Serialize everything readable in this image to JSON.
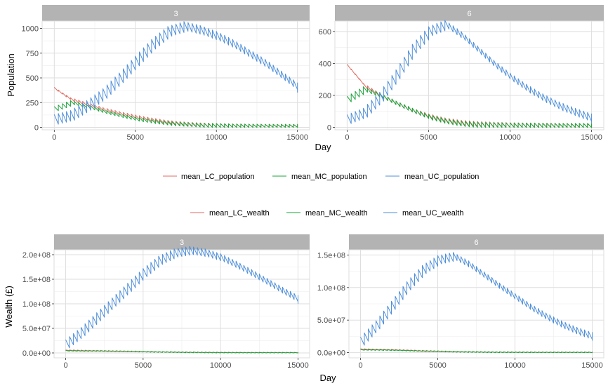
{
  "colors": {
    "LC": "#e06a62",
    "MC": "#1aa33a",
    "UC": "#4f8fda",
    "strip": "#b3b3b3",
    "grid": "#dedede"
  },
  "legends": {
    "population": [
      "mean_LC_population",
      "mean_MC_population",
      "mean_UC_population"
    ],
    "wealth": [
      "mean_LC_wealth",
      "mean_MC_wealth",
      "mean_UC_wealth"
    ]
  },
  "chart_data": [
    {
      "type": "line",
      "facet": "3",
      "xlabel": "Day",
      "ylabel": "Population",
      "xlim": [
        0,
        15000
      ],
      "ylim": [
        -25,
        1075
      ],
      "x_ticks": [
        0,
        5000,
        10000,
        15000
      ],
      "x_tick_labels": [
        "0",
        "5000",
        "10000",
        "15000"
      ],
      "y_ticks": [
        0,
        250,
        500,
        750,
        1000
      ],
      "y_tick_labels": [
        "0",
        "250",
        "500",
        "750",
        "1000"
      ],
      "grid": true,
      "legend_position": "bottom",
      "series": [
        {
          "name": "mean_LC_population",
          "x": [
            0,
            500,
            1000,
            2000,
            3000,
            4000,
            5000,
            6000,
            7000,
            8000,
            9000,
            10000,
            11000,
            12000,
            13000,
            14000,
            15000
          ],
          "values": [
            375,
            320,
            270,
            220,
            170,
            130,
            95,
            65,
            40,
            25,
            15,
            10,
            5,
            3,
            2,
            1,
            0
          ],
          "sawtooth": 30
        },
        {
          "name": "mean_MC_population",
          "x": [
            0,
            500,
            1000,
            2000,
            3000,
            4000,
            5000,
            6000,
            7000,
            8000,
            9000,
            10000,
            11000,
            12000,
            13000,
            14000,
            15000
          ],
          "values": [
            180,
            210,
            240,
            200,
            150,
            110,
            75,
            50,
            30,
            20,
            12,
            8,
            4,
            2,
            1,
            0,
            0
          ],
          "sawtooth": 30
        },
        {
          "name": "mean_UC_population",
          "x": [
            0,
            1000,
            2000,
            3000,
            4000,
            5000,
            6000,
            7000,
            8000,
            9000,
            10000,
            11000,
            12000,
            13000,
            14000,
            15000
          ],
          "values": [
            60,
            100,
            200,
            320,
            480,
            650,
            820,
            950,
            1000,
            960,
            900,
            820,
            720,
            620,
            500,
            380
          ],
          "sawtooth": 70
        }
      ]
    },
    {
      "type": "line",
      "facet": "6",
      "xlabel": "Day",
      "ylabel": "",
      "xlim": [
        0,
        15000
      ],
      "ylim": [
        -15,
        665
      ],
      "x_ticks": [
        0,
        5000,
        10000,
        15000
      ],
      "x_tick_labels": [
        "0",
        "5000",
        "10000",
        "15000"
      ],
      "y_ticks": [
        0,
        200,
        400,
        600
      ],
      "y_tick_labels": [
        "0",
        "200",
        "400",
        "600"
      ],
      "grid": true,
      "legend_position": "bottom",
      "series": [
        {
          "name": "mean_LC_population",
          "x": [
            0,
            500,
            1000,
            2000,
            3000,
            4000,
            5000,
            6000,
            7000,
            8000,
            9000,
            10000,
            11000,
            12000,
            13000,
            14000,
            15000
          ],
          "values": [
            370,
            310,
            250,
            190,
            140,
            95,
            60,
            35,
            20,
            12,
            8,
            5,
            3,
            2,
            1,
            0,
            0
          ],
          "sawtooth": 25
        },
        {
          "name": "mean_MC_population",
          "x": [
            0,
            500,
            1000,
            2000,
            3000,
            4000,
            5000,
            6000,
            7000,
            8000,
            9000,
            10000,
            11000,
            12000,
            13000,
            14000,
            15000
          ],
          "values": [
            170,
            200,
            230,
            190,
            140,
            95,
            55,
            30,
            15,
            8,
            5,
            3,
            2,
            1,
            0,
            0,
            0
          ],
          "sawtooth": 25
        },
        {
          "name": "mean_UC_population",
          "x": [
            0,
            1000,
            2000,
            3000,
            4000,
            5000,
            6000,
            7000,
            8000,
            9000,
            10000,
            11000,
            12000,
            13000,
            14000,
            15000
          ],
          "values": [
            40,
            80,
            180,
            320,
            480,
            590,
            630,
            560,
            470,
            380,
            300,
            230,
            170,
            120,
            80,
            45
          ],
          "sawtooth": 40
        }
      ]
    },
    {
      "type": "line",
      "facet": "3",
      "xlabel": "Day",
      "ylabel": "Wealth (£)",
      "xlim": [
        0,
        15000
      ],
      "ylim": [
        -10000000,
        210000000
      ],
      "x_ticks": [
        0,
        5000,
        10000,
        15000
      ],
      "x_tick_labels": [
        "0",
        "5000",
        "10000",
        "15000"
      ],
      "y_ticks": [
        0,
        50000000,
        100000000,
        150000000,
        200000000
      ],
      "y_tick_labels": [
        "0.0e+00",
        "5.0e+07",
        "1.0e+08",
        "1.5e+08",
        "2.0e+08"
      ],
      "grid": true,
      "legend_position": "top",
      "series": [
        {
          "name": "mean_LC_wealth",
          "x": [
            0,
            2000,
            4000,
            6000,
            8000,
            10000,
            12000,
            15000
          ],
          "values": [
            5000000,
            4000000,
            3000000,
            1500000,
            800000,
            300000,
            100000,
            0
          ],
          "sawtooth": 1200000
        },
        {
          "name": "mean_MC_wealth",
          "x": [
            0,
            2000,
            4000,
            6000,
            8000,
            10000,
            12000,
            15000
          ],
          "values": [
            4000000,
            3500000,
            2500000,
            1500000,
            800000,
            300000,
            100000,
            0
          ],
          "sawtooth": 1000000
        },
        {
          "name": "mean_UC_wealth",
          "x": [
            0,
            1000,
            2000,
            3000,
            4000,
            5000,
            6000,
            7000,
            8000,
            9000,
            10000,
            11000,
            12000,
            13000,
            14000,
            15000
          ],
          "values": [
            15000000,
            40000000,
            70000000,
            100000000,
            130000000,
            160000000,
            185000000,
            200000000,
            205000000,
            200000000,
            190000000,
            175000000,
            158000000,
            140000000,
            122000000,
            105000000
          ],
          "sawtooth": 12000000
        }
      ]
    },
    {
      "type": "line",
      "facet": "6",
      "xlabel": "Day",
      "ylabel": "",
      "xlim": [
        0,
        15000
      ],
      "ylim": [
        -8000000,
        158000000
      ],
      "x_ticks": [
        0,
        5000,
        10000,
        15000
      ],
      "x_tick_labels": [
        "0",
        "5000",
        "10000",
        "15000"
      ],
      "y_ticks": [
        0,
        50000000,
        100000000,
        150000000
      ],
      "y_tick_labels": [
        "0.0e+00",
        "5.0e+07",
        "1.0e+08",
        "1.5e+08"
      ],
      "grid": true,
      "legend_position": "top",
      "series": [
        {
          "name": "mean_LC_wealth",
          "x": [
            0,
            2000,
            4000,
            6000,
            8000,
            10000,
            12000,
            15000
          ],
          "values": [
            5000000,
            4000000,
            2500000,
            1200000,
            500000,
            200000,
            50000,
            0
          ],
          "sawtooth": 1000000
        },
        {
          "name": "mean_MC_wealth",
          "x": [
            0,
            2000,
            4000,
            6000,
            8000,
            10000,
            12000,
            15000
          ],
          "values": [
            4000000,
            3500000,
            2000000,
            1000000,
            400000,
            150000,
            50000,
            0
          ],
          "sawtooth": 900000
        },
        {
          "name": "mean_UC_wealth",
          "x": [
            0,
            1000,
            2000,
            3000,
            4000,
            5000,
            6000,
            7000,
            8000,
            9000,
            10000,
            11000,
            12000,
            13000,
            14000,
            15000
          ],
          "values": [
            15000000,
            40000000,
            70000000,
            100000000,
            125000000,
            140000000,
            145000000,
            132000000,
            115000000,
            98000000,
            82000000,
            66000000,
            52000000,
            40000000,
            30000000,
            22000000
          ],
          "sawtooth": 9000000
        }
      ]
    }
  ]
}
